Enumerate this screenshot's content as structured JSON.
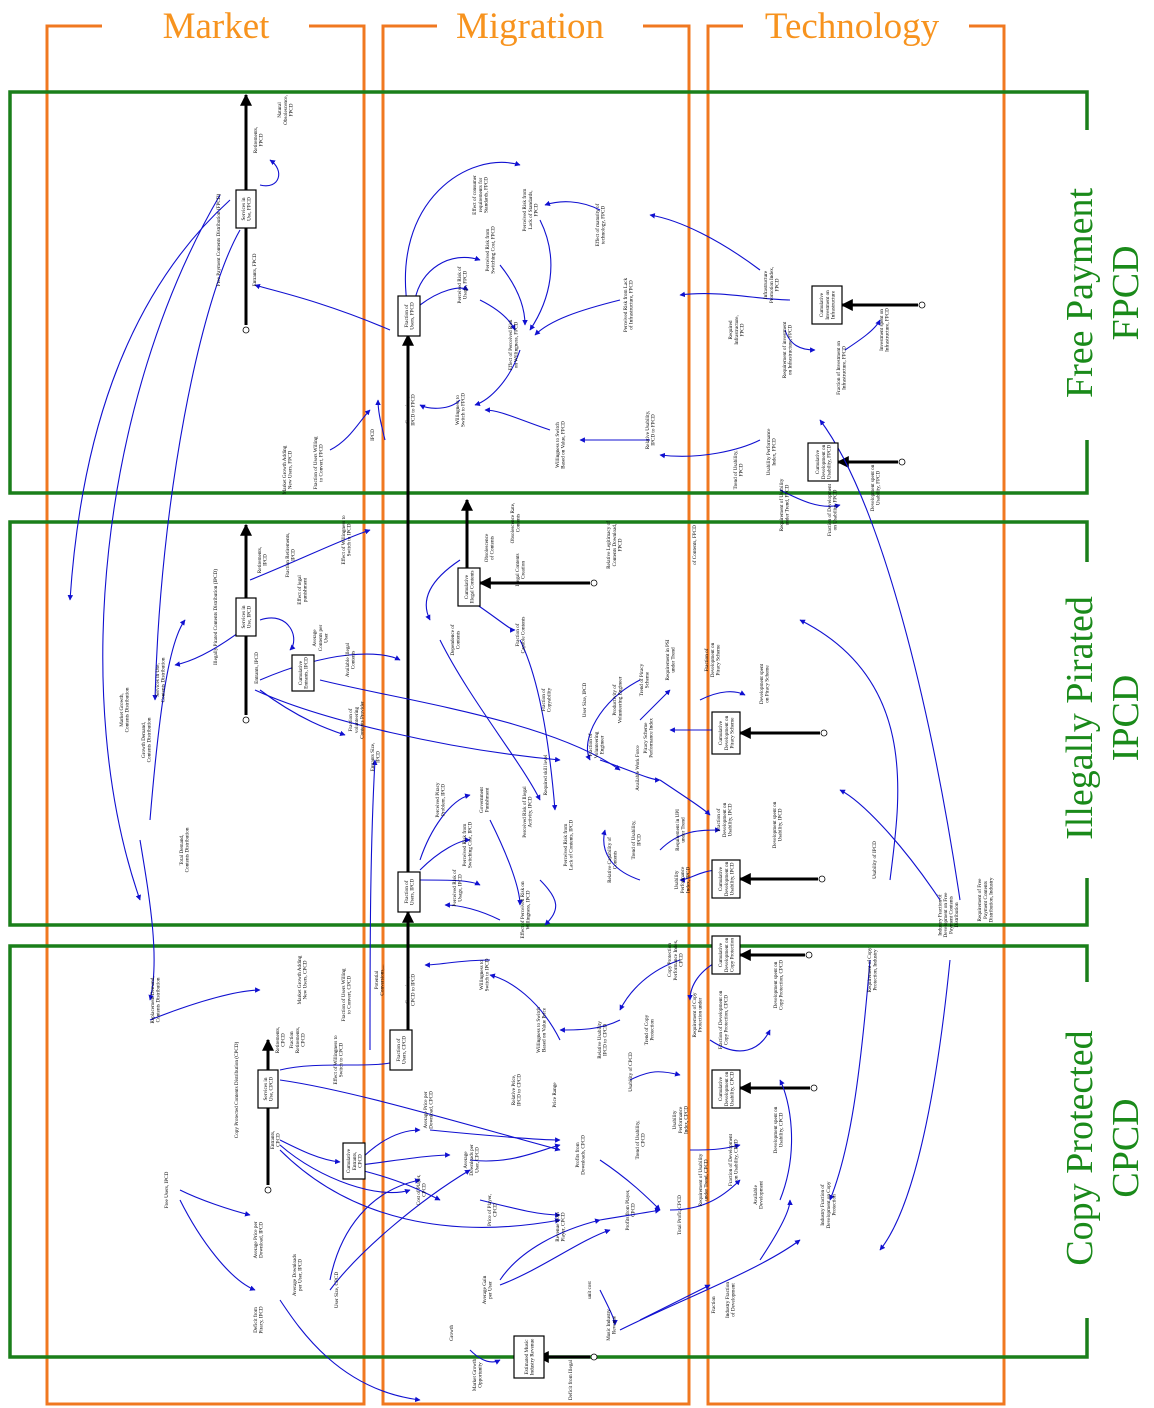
{
  "columns": {
    "market": "Market",
    "migration": "Migration",
    "technology": "Technology"
  },
  "rows": {
    "fpcd": [
      "Free Payment",
      "FPCD"
    ],
    "ipcd": [
      "Illegally Pirated",
      "IPCD"
    ],
    "cpcd": [
      "Copy Protected",
      "CPCD"
    ]
  },
  "variables": {
    "fpcd": {
      "services_in_use": [
        "Services in",
        "Use, FPCD"
      ],
      "entrants": "Entrants, FPCD",
      "retirements": [
        "Retirements,",
        "FPCD"
      ],
      "natural_obsolescence": [
        "Natural",
        "Obsolescence,",
        "FPCD"
      ],
      "payment_contents_distribution": "Free Payment Contents Distribution (FPCD)",
      "fraction_of_users": [
        "Fraction of",
        "Users, FPCD"
      ],
      "effect_consumer_requirements": [
        "Effect of consumer",
        "requirements for",
        "Standards, FPCD"
      ],
      "perceived_risk_lack_standards": [
        "Perceived Risk from",
        "Lack of Standards,",
        "FPCD"
      ],
      "effect_maturity_technology": [
        "Effect of maturity of",
        "technology, FPCD"
      ],
      "perceived_risk_switching_cost": [
        "Perceived Risk from",
        "Switching Cost, FPCD"
      ],
      "perceived_risk_usage": [
        "Perceived Risk of",
        "Usage, FPCD"
      ],
      "effect_perceived_risk": [
        "Effect of Perceived Risk",
        "on Willingness, FPCD"
      ],
      "perceived_risk_lack_infrastructure": [
        "Perceived Risk from Lack",
        "of Infrastructure, FPCD"
      ],
      "conversions": [
        "Conversions,",
        "IPCD to FPCD"
      ],
      "willingness_to_switch": [
        "Willingness to",
        "Switch to FPCD"
      ],
      "willingness_based_on_value": [
        "Willingness to Switch",
        "Based on Value, FPCD"
      ],
      "relative_usability": [
        "Relative Usability,",
        "IPCD to FPCD"
      ],
      "market_growth_new_users": [
        "Market Growth Adding",
        "New Users, FPCD"
      ],
      "fraction_users_willing": [
        "Fraction of Users Willing",
        "to Convert, FPCD"
      ],
      "ipcd_small": "IPCD",
      "infrastructure_promotion_index": [
        "Infrastructure",
        "Promotion Index,",
        "FPCD"
      ],
      "cumulative_infrastructure": [
        "Cumulative",
        "Investment on",
        "Infrastructure"
      ],
      "required_infrastructure": [
        "Required",
        "Infrastructure,",
        "FPCD"
      ],
      "requirement_investment_infrastructure": [
        "Requirement of investment",
        "on Infrastructure, FPCD"
      ],
      "fraction_investment_infrastructure": [
        "Fraction of Investment on",
        "Infrastructure, FPCD"
      ],
      "investment_spent_infrastructure": [
        "Investment spent on",
        "Infrastructure, FPCD"
      ],
      "trend_of_usability": [
        "Trend of Usability,",
        "FPCD"
      ],
      "usability_performance_index": [
        "Usability Performance",
        "Index, FPCD"
      ],
      "cumulative_usability": [
        "Cumulative",
        "Development on",
        "Usability, FPCD"
      ],
      "requirement_of_usability": [
        "Requirement of Usability",
        "under Trend, FPCD"
      ],
      "fraction_of_development": [
        "Fraction of Development",
        "on Usability, FPCD"
      ],
      "development_spent_usability": [
        "Development spent on",
        "Usability, FPCD"
      ]
    },
    "ipcd": {
      "services_in_use": [
        "Services in",
        "Use, IPCD"
      ],
      "entrants": "Entrants, IPCD",
      "retirements": [
        "Retirements,",
        "IPCD"
      ],
      "fraction_retirements": [
        "Fraction Retirements,",
        "IPCD"
      ],
      "effect_willingness": [
        "Effect of Willingness to",
        "Switch to IPCD"
      ],
      "contents_distribution": "Illegally Pirated Contents Distribution (IPCD)",
      "effect_legal_punishment": [
        "Effect of legal",
        "punishment"
      ],
      "cumulative_entrants": [
        "Cumulative",
        "Entrants, IPCD"
      ],
      "average_contents_per_user": [
        "Average",
        "Contents per",
        "User"
      ],
      "available_illegal_contents": [
        "Available Illegal",
        "Contents"
      ],
      "fraction_volunteering": [
        "Fraction of",
        "volunteering",
        "Contents Provider"
      ],
      "entrants_size": [
        "Entrants Size,",
        "IPCD"
      ],
      "cumulative_illegal_contents": [
        "Cumulative",
        "Illegal Contents"
      ],
      "obsolescence_of_contents": [
        "Obsolescence",
        "of Contents"
      ],
      "obsolescence_rate": [
        "Obsolescence Rate,",
        "Contents"
      ],
      "illegal_contents_creation": [
        "Illegal Contents",
        "Creation"
      ],
      "relative_legitimacy": [
        "Relative Legitimacy of",
        "Contents Download,",
        "FPCD"
      ],
      "of_contents_fpcd": "of Contents, FPCD",
      "dependence_of_contents": [
        "Dependence of",
        "Contents"
      ],
      "fraction_capable_contents": [
        "Fraction of",
        "Capable Contents"
      ],
      "fraction_of_copyability": [
        "Fraction of",
        "Copyability"
      ],
      "user_size": "User Size, IPCD",
      "productivity_volunteering": [
        "Productivity of",
        "Volunteering Engineer"
      ],
      "trend_of_piracy": [
        "Trend of Piracy",
        "Scheme"
      ],
      "requirement_psi": [
        "Requirement in PSI",
        "under Trend"
      ],
      "fraction_development_piracy": [
        "Fraction of",
        "Development on",
        "Piracy Scheme"
      ],
      "development_spent_piracy": [
        "Development spent",
        "on Piracy Scheme"
      ],
      "fraction_volunteering_engineer": [
        "Fraction of",
        "Volunteering",
        "Engineer"
      ],
      "piracy_scheme_index": [
        "Piracy Scheme",
        "Performance Index"
      ],
      "cumulative_development_piracy": [
        "Cumulative",
        "Development on",
        "Piracy Scheme"
      ],
      "available_work_force": "Available Work Force",
      "perceived_piracy_problem": [
        "Perceived Piracy",
        "Problem, IPCD"
      ],
      "government_punishment": [
        "Government",
        "Punishment"
      ],
      "perceived_risk_illegal": [
        "Perceived Risk of Illegal",
        "Activity, IPCD"
      ],
      "perceived_risk_switching": [
        "Perceived Risk from",
        "Switching Cost, IPCD"
      ],
      "perceived_risk_usage": [
        "Perceived Risk of",
        "Usage, IPCD"
      ],
      "perceived_risk_lack_contents": [
        "Perceived Risk from",
        "Lack of Contents, IPCD"
      ],
      "required_skill_level": "Required skill level",
      "trend_of_usability": [
        "Trend of Usability,",
        "IPCD"
      ],
      "requirement_upi": [
        "Requirement in UPI",
        "under Trend"
      ],
      "fraction_development_usability": [
        "Fraction of",
        "Development on",
        "Usability, IPCD"
      ],
      "development_spent_usability": [
        "Development spent on",
        "Usability, IPCD"
      ],
      "cumulative_development_usability": [
        "Cumulative",
        "Development on",
        "Usability, IPCD"
      ],
      "usability_performance_index": [
        "Usability",
        "Performance",
        "Index, IPCD"
      ],
      "relative_capability": [
        "Relative Capability of",
        "Contents"
      ],
      "usability_of_ipcd": "Usability of IPCD",
      "fraction_of_users": [
        "Fraction of",
        "Users, IPCD"
      ],
      "effect_perceived_risk": [
        "Effect of Perceived Risk on",
        "Willingness, IPCD"
      ],
      "market_growth": [
        "Market Growth,",
        "Contents Distribution"
      ],
      "growth_demand": [
        "Growth Demand,",
        "Contents Distribution"
      ],
      "services_in_use_cd": [
        "Services in Use,",
        "Contents Distribution"
      ],
      "total_demand": [
        "Total Demand,",
        "Contents Distribution"
      ]
    },
    "cpcd": {
      "services_in_use": [
        "Services in",
        "Use, CPCD"
      ],
      "entrants": [
        "Entrants,",
        "CPCD"
      ],
      "retirements": [
        "Retirements,",
        "CPCD"
      ],
      "fraction_retirements": [
        "Fraction",
        "Retirements,",
        "CPCD"
      ],
      "contents_distribution": "Copy Protected Contents Distribution (CPCD)",
      "replacement_demand": [
        "Replacement Demand,",
        "Contents Distribution"
      ],
      "market_growth_new_users": [
        "Market Growth Adding",
        "New Users, CPCD"
      ],
      "fraction_users_willing": [
        "Fraction of Users Willing",
        "to Convert, CPCD"
      ],
      "potential_conversions": [
        "Potential",
        "Conversions,..."
      ],
      "effect_willingness": [
        "Effect of Willingness to",
        "Switch to CPCD"
      ],
      "conversions": [
        "Conversions,",
        "CPCD to IPCD"
      ],
      "willingness_to_switch": [
        "Willingness to",
        "Switch to IPCD"
      ],
      "willingness_based_on_value": [
        "Willingness to Switch",
        "Based on Value Price"
      ],
      "fraction_of_users": [
        "Fraction of",
        "Users, CPCD"
      ],
      "relative_price": [
        "Relative Price,",
        "IPCD to CPCD"
      ],
      "price_range": "Price Range",
      "relative_usability": [
        "Relative Usability",
        "IPCD to CPCD"
      ],
      "usability_of_cpcd": "Usability of CPCD",
      "copy_protection_index": [
        "Copy Protection",
        "Performance Index,",
        "CPCD"
      ],
      "trend_of_copy_protection": [
        "Trend of Copy",
        "Protection"
      ],
      "requirement_copy_protection": [
        "Requirement of Copy",
        "Protection under"
      ],
      "cumulative_copy_protection": [
        "Cumulative",
        "Development on",
        "Copy Protection"
      ],
      "fraction_development_copy": [
        "Fraction of Development on",
        "Copy Protection, CPCD"
      ],
      "development_spent_copy": [
        "Development spent on",
        "Copy Protection, CPCD"
      ],
      "cumulative_usability": [
        "Cumulative",
        "Development on",
        "Usability, CPCD"
      ],
      "trend_of_usability": [
        "Trend of Usability,",
        "CPCD"
      ],
      "usability_performance_index": [
        "Usability",
        "Performance",
        "Index, CPCD"
      ],
      "requirement_of_usability": [
        "Requirement of Usability",
        "under Trend, CPCD"
      ],
      "fraction_development_usability": [
        "Fraction of Development",
        "on Usability, CPCD"
      ],
      "development_spent_usability": [
        "Development spent on",
        "Usability, CPCD"
      ],
      "available_development": [
        "Available",
        "Development"
      ],
      "industry_fraction_copy": [
        "Industry Fraction of",
        "Development on Copy",
        "Protection"
      ],
      "industry_fraction_development": [
        "Industry Fraction",
        "of Development"
      ],
      "fraction": "Fraction",
      "cumulative_entrants": [
        "Cumulative",
        "Entrants,",
        "CPCD"
      ],
      "average_price_per_download": [
        "Average Price per",
        "Download, CPCD"
      ],
      "average_downloads_per_user": [
        "Average",
        "Downloads per",
        "User, CPCD"
      ],
      "cost_of_player": [
        "Cost of Player,",
        "CPCD"
      ],
      "price_of_player": [
        "Price of Player,",
        "CPCD"
      ],
      "profits_from_downloads": [
        "Profits from",
        "Downloads, CPCD"
      ],
      "revenue_from_player": [
        "Revenue from",
        "Player, CPCD"
      ],
      "profits_from_player": [
        "Profits from Player,",
        "CPCD"
      ],
      "total_profit": "Total Profit, CPCD",
      "free_users": "Free Users, IPCD",
      "average_price_ipcd": [
        "Average Price per",
        "Download, IPCD"
      ],
      "average_downloads_ipcd": [
        "Average Downloads",
        "per User, IPCD"
      ],
      "user_size": "User Size, CPCD",
      "deficit_from_piracy": [
        "Deficit from",
        "Piracy, IPCD"
      ],
      "average_gain_per_user": [
        "Average Gain",
        "per User"
      ],
      "unit_cost": "unit cost",
      "music_industry_revenue": [
        "Music Industry",
        "Revenue"
      ],
      "growth": "Growth",
      "market_growth_opportunity": [
        "Market Growth",
        "Opportunity"
      ],
      "estimated_music_industry": [
        "Estimated Music",
        "Industry Revenue"
      ],
      "deficit_from_illegal": "Deficit from Illegal",
      "requirement_free_payment": [
        "Requirement of Free",
        "Payment Contents",
        "Distribution, Industry"
      ],
      "industry_fraction_free": [
        "Industry Fraction of",
        "Development on Free",
        "Payment Contents",
        "Distribution"
      ],
      "requirement_copy_industry": [
        "Requirement of Copy",
        "Protection, Industry"
      ]
    }
  }
}
